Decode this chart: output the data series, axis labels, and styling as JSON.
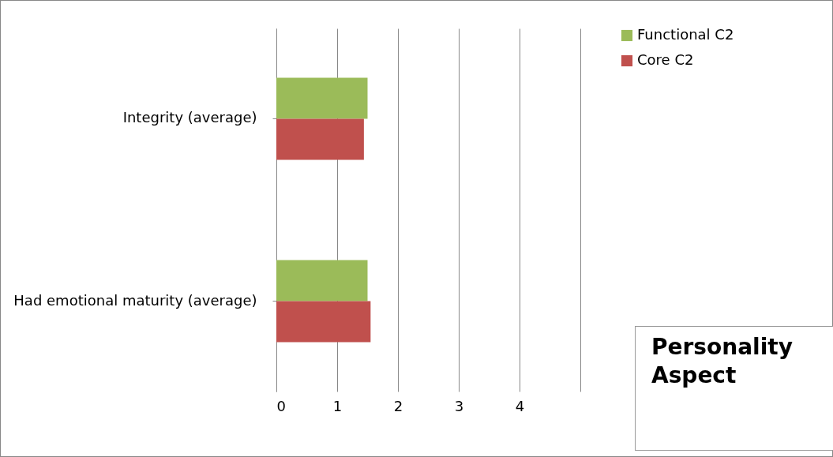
{
  "chart_data": {
    "type": "bar",
    "orientation": "horizontal",
    "categories": [
      "Integrity  (average)",
      "Had emotional maturity  (average)"
    ],
    "series": [
      {
        "name": "Functional C2",
        "color": "#9bbb59",
        "values": [
          1.5,
          1.5
        ]
      },
      {
        "name": "Core C2",
        "color": "#c0504d",
        "values": [
          1.44,
          1.55
        ]
      }
    ],
    "xlim": [
      0,
      5
    ],
    "xticks": [
      0,
      1,
      2,
      3,
      4,
      {
        "value": 5,
        "label": null
      }
    ],
    "grid": "x",
    "legend": "right",
    "annotations": [
      "Personality Aspect"
    ]
  }
}
